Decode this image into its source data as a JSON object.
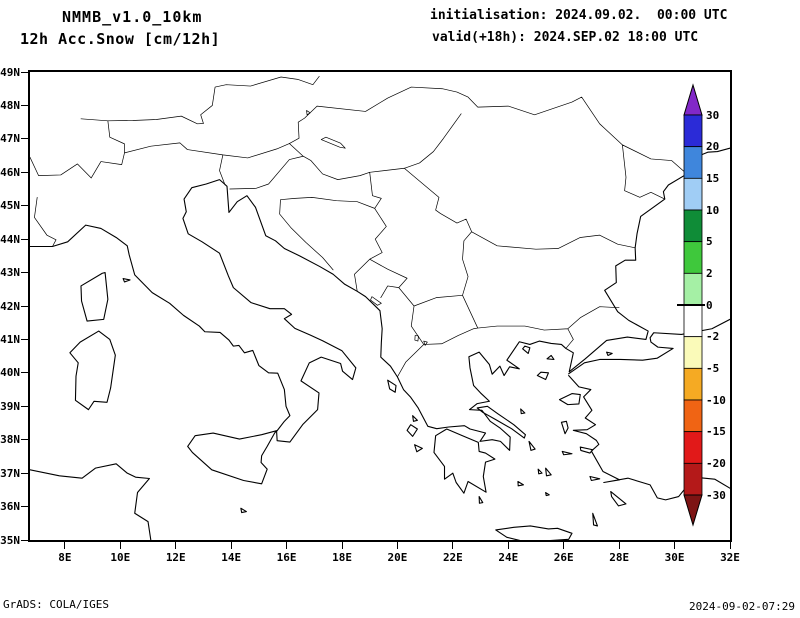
{
  "header": {
    "model": "NMMB_v1.0_10km",
    "product": "12h Acc.Snow [cm/12h]",
    "init": "initialisation: 2024.09.02.  00:00 UTC",
    "valid": "valid(+18h): 2024.SEP.02 18:00 UTC"
  },
  "footer": {
    "credit": "GrADS: COLA/IGES",
    "timestamp": "2024-09-02-07:29"
  },
  "axes": {
    "lat": [
      {
        "label": "35N",
        "value": 35
      },
      {
        "label": "36N",
        "value": 36
      },
      {
        "label": "37N",
        "value": 37
      },
      {
        "label": "38N",
        "value": 38
      },
      {
        "label": "39N",
        "value": 39
      },
      {
        "label": "40N",
        "value": 40
      },
      {
        "label": "41N",
        "value": 41
      },
      {
        "label": "42N",
        "value": 42
      },
      {
        "label": "43N",
        "value": 43
      },
      {
        "label": "44N",
        "value": 44
      },
      {
        "label": "45N",
        "value": 45
      },
      {
        "label": "46N",
        "value": 46
      },
      {
        "label": "47N",
        "value": 47
      },
      {
        "label": "48N",
        "value": 48
      },
      {
        "label": "49N",
        "value": 49
      }
    ],
    "lon": [
      {
        "label": "8E",
        "value": 8
      },
      {
        "label": "10E",
        "value": 10
      },
      {
        "label": "12E",
        "value": 12
      },
      {
        "label": "14E",
        "value": 14
      },
      {
        "label": "16E",
        "value": 16
      },
      {
        "label": "18E",
        "value": 18
      },
      {
        "label": "20E",
        "value": 20
      },
      {
        "label": "22E",
        "value": 22
      },
      {
        "label": "24E",
        "value": 24
      },
      {
        "label": "26E",
        "value": 26
      },
      {
        "label": "28E",
        "value": 28
      },
      {
        "label": "30E",
        "value": 30
      },
      {
        "label": "32E",
        "value": 32
      }
    ]
  },
  "colorbar": {
    "levels": [
      "30",
      "20",
      "15",
      "10",
      "5",
      "2",
      "0",
      "-2",
      "-5",
      "-10",
      "-15",
      "-20",
      "-30"
    ],
    "segment_colors": [
      "#2B2BD7",
      "#3F86DC",
      "#A0CDF5",
      "#0F8C37",
      "#3FC83C",
      "#A5F0A5",
      "#FFFFFF",
      "#FAFAB9",
      "#F5AA23",
      "#F06414",
      "#E11919",
      "#B41919"
    ],
    "arrow_top_color": "#8228C8",
    "arrow_bottom_color": "#7D1414"
  },
  "chart_data": {
    "type": "map",
    "field": "12h accumulated snow",
    "units": "cm/12h",
    "model": "NMMB_v1.0_10km",
    "projection": "lat-lon",
    "lon_range_deg_east": [
      8,
      32
    ],
    "lat_range_deg_north": [
      35,
      49
    ],
    "contour_levels": [
      -30,
      -20,
      -15,
      -10,
      -5,
      -2,
      0,
      2,
      5,
      10,
      15,
      20,
      30
    ],
    "shaded_data": "none - no snow accumulation anywhere in domain (map interior blank, coastlines and country borders only)"
  }
}
